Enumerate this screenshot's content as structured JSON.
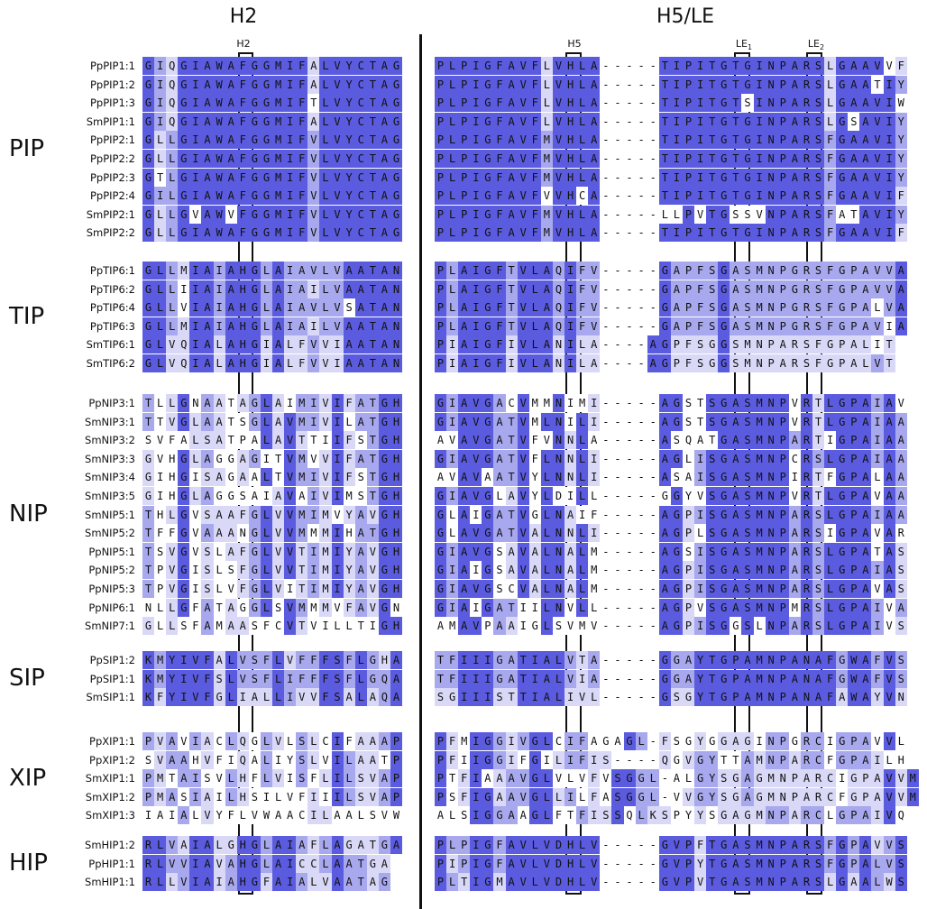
{
  "titles": {
    "left": "H2",
    "right": "H5/LE"
  },
  "column_labels": {
    "h2": "H2",
    "h5": "H5",
    "le1": "LE",
    "le1_sub": "1",
    "le2": "LE",
    "le2_sub": "2"
  },
  "colors": {
    "white": "#ffffff",
    "light": "#d9d9f7",
    "medium": "#a8a8ee",
    "dark": "#5b5be0"
  },
  "groups": [
    {
      "family": "PIP",
      "rows": [
        {
          "name": "PpPIP1:1",
          "h2": "GIQGIAWAFGGMIFALVYCTAG",
          "h5": "PLPIGFAVFLVHLA-----TIPITGTGINPARSLGAAVVF"
        },
        {
          "name": "PpPIP1:2",
          "h2": "GIQGIAWAFGGMIFALVYCTAG",
          "h5": "PLPIGFAVFLVHLA-----TIPITGTGINPARSLGAATIY"
        },
        {
          "name": "PpPIP1:3",
          "h2": "GIQGIAWAFGGMIFTLVYCTAG",
          "h5": "PLPIGFAVFLVHLA-----TIPITGTSINPARSLGAAVIW"
        },
        {
          "name": "SmPIP1:1",
          "h2": "GIQGIAWAFGGMIFALVYCTAG",
          "h5": "PLPIGFAVFLVHLA-----TIPITGTGINPARSLGSAVIY"
        },
        {
          "name": "PpPIP2:1",
          "h2": "GLLGIAWAFGGMIFVLVYCTAG",
          "h5": "PLPIGFAVFMVHLA-----TIPITGTGINPARSFGAAVIY"
        },
        {
          "name": "PpPIP2:2",
          "h2": "GLLGIAWAFGGMIFVLVYCTAG",
          "h5": "PLPIGFAVFMVHLA-----TIPITGTGINPARSFGAAVIY"
        },
        {
          "name": "PpPIP2:3",
          "h2": "GTLGIAWAFGGMIFVLVYCTAG",
          "h5": "PLPIGFAVFMVHLA-----TIPITGTGINPARSFGAAVIY"
        },
        {
          "name": "PpPIP2:4",
          "h2": "GILGIAWAFGGMIFVLVYCTAG",
          "h5": "PLPIGFAVFVVHCA-----TIPITGTGINPARSFGAAVIF"
        },
        {
          "name": "SmPIP2:1",
          "h2": "GLLGVAWVFGGMIFVLVYCTAG",
          "h5": "PLPIGFAVFMVHLA-----LLPVTGSSVNPARSFATAVIY"
        },
        {
          "name": "SmPIP2:2",
          "h2": "GLLGIAWAFGGMIFVLVYCTAG",
          "h5": "PLPIGFAVFMVHLA-----TIPITGTGINPARSFGAAVIF"
        }
      ]
    },
    {
      "family": "TIP",
      "rows": [
        {
          "name": "PpTIP6:1",
          "h2": "GLLMIAIAHGLAIAVLVAATAN",
          "h5": "PLAIGFTVLAQIFV-----GAPFSGASMNPGRSFGPAVVA"
        },
        {
          "name": "PpTIP6:2",
          "h2": "GLLIIAIAHGLAIAILVAATAN",
          "h5": "PLAIGFTVLAQIFV-----GAPFSGASMNPGRSFGPAVVA"
        },
        {
          "name": "PpTIP6:4",
          "h2": "GLLVIAIAHGLAIAVLVSATAN",
          "h5": "PLAIGFTVLAQIFV-----GAPFSGASMNPGRSFGPALVA"
        },
        {
          "name": "PpTIP6:3",
          "h2": "GLLMIAIAHGLAIAILVAATAN",
          "h5": "PLAIGFTVLAQIFV-----GAPFSGASMNPGRSFGPAVIA"
        },
        {
          "name": "SmTIP6:1",
          "h2": "GLVQIALAHGIALFVVIAATAN",
          "h5": "PIAIGFIVLANILA----AGPFSGGSMNPARSFGPALIT"
        },
        {
          "name": "SmTIP6:2",
          "h2": "GLVQIALAHGIALFVVIAATAN",
          "h5": "PIAIGFIVLANILA----AGPFSGGSMNPARSFGPALVT"
        }
      ]
    },
    {
      "family": "NIP",
      "rows": [
        {
          "name": "PpNIP3:1",
          "h2": "TLLGNAATAGLAIMIVIFATGH",
          "h5": "GIAVGACVMMNIMI-----AGSTSGASMNPVRTLGPAIAV"
        },
        {
          "name": "SmNIP3:1",
          "h2": "TTVGLAATSGLAVMIVILATGH",
          "h5": "GIAVGATVMLNILI-----AGSTSGASMNPVRTLGPAIAA"
        },
        {
          "name": "SmNIP3:2",
          "h2": "SVFALSATPALAVTTIIFSTGH",
          "h5": "AVAVGATVFVNNLA-----ASQATGASMNPARTIGPAIAA"
        },
        {
          "name": "SmNIP3:3",
          "h2": "GVHGLAGGAGITVMVVIFATGH",
          "h5": "GIAVGATVFLNNLI-----AGLISGASMNPCRSLGPAIAA"
        },
        {
          "name": "SmNIP3:4",
          "h2": "GIHGISAGAALTVMIVIFSTGH",
          "h5": "AVAVAATVYLNNLI-----ASAISGASMNPIRTFGPALAA"
        },
        {
          "name": "SmNIP3:5",
          "h2": "GIHGLAGGSAIAVAIVIMSTGH",
          "h5": "GIAVGLAVYLDILL-----GGYVSGASMNPVRTLGPAVAA"
        },
        {
          "name": "SmNIP5:1",
          "h2": "THLGVSAAFGLVVMIMVYAVGH",
          "h5": "GLAIGATVGLNAIF-----AGPISGASMNPARSLGPAIAA"
        },
        {
          "name": "SmNIP5:2",
          "h2": "TFFGVAAANGLVVMMMIHATGH",
          "h5": "GLAVGATVALNNLI-----AGPLSGASMNPARSIGPAVAR"
        },
        {
          "name": "PpNIP5:1",
          "h2": "TSVGVSLAFGLVVTIMIYAVGH",
          "h5": "GIAVGSAVALNALM-----AGSISGASMNPARSLGPATAS"
        },
        {
          "name": "PpNIP5:2",
          "h2": "TPVGISLSFGLVVTIMIYAVGH",
          "h5": "GIAIGSAVALNALM-----AGPISGASMNPARSLGPAIAS"
        },
        {
          "name": "PpNIP5:3",
          "h2": "TPVGISLVFGLVITIMIYAVGH",
          "h5": "GIAVGSCVALNALM-----AGPISGASMNPARSLGPAVAS"
        },
        {
          "name": "PpNIP6:1",
          "h2": "NLLGFATAGGLSVMMMVFAVGN",
          "h5": "GIAIGATIILNVLL-----AGPVSGASMNPMRSLGPAIVA"
        },
        {
          "name": "SmNIP7:1",
          "h2": "GLLSFAMAASFCVTVILLTIGH",
          "h5": "AMAVPAAIGLSVMV-----AGPISGGSLNPARSLGPAIVS"
        }
      ]
    },
    {
      "family": "SIP",
      "rows": [
        {
          "name": "PpSIP1:2",
          "h2": "KMYIVFALVSFLVFFFSFLGHA",
          "h5": "TFIIIGATIALVTA-----GGAYTGPAMNPANAFGWAFVS"
        },
        {
          "name": "PpSIP1:1",
          "h2": "KMYIVFSLVSFLIFFFSFLGQA",
          "h5": "TFIIIGATIALVIA-----GGAYTGPAMNPANAFGWAFVS"
        },
        {
          "name": "SmSIP1:1",
          "h2": "KFYIVFGLIALLIVVFSALAQA",
          "h5": "SGIIISTTIALIVL-----GSGYTGPAMNPANAFAWAYVN"
        }
      ]
    },
    {
      "family": "XIP",
      "rows": [
        {
          "name": "PpXIP1:1",
          "h2": "PVAVIACLQGLVLSLCIFAAAP",
          "h5": "PFMIGGIVGLCIFAGAGL-FSGYGGAGINPGRCIGPAVVL"
        },
        {
          "name": "PpXIP1:2",
          "h2": "SVAAHVFIQALIYSLVILAATP",
          "h5": "PFIIGGIFGILIFIS----QGVGYTTAMNPARCFGPAILH"
        },
        {
          "name": "SmXIP1:1",
          "h2": "PMTAISVLHFLVISFLILSVAP",
          "h5": "PTFIAAAVGLVLVFVSGGL-ALGYSGAGMNPARCIGPAVVM"
        },
        {
          "name": "SmXIP1:2",
          "h2": "PMASIAILHSILVFIIILSVAP",
          "h5": "PSFIGAAVGLLILFASGGL-VVGYSGAGMNPARCFGPAVVM"
        },
        {
          "name": "SmXIP1:3",
          "h2": "IAIALVYFLVWAACILAALSVW",
          "h5": "ALSIGGAAGLFTFISSQLKSPYYSGAGMNPARCLGPAIVQ"
        }
      ]
    },
    {
      "family": "HIP",
      "rows": [
        {
          "name": "SmHIP1:2",
          "h2": "RLVAIALGHGLAIAFLAGATGA",
          "h5": "PLPIGFAVLVDHLV-----GVPFTGASMNPARSFGPAVVS"
        },
        {
          "name": "PpHIP1:1",
          "h2": "RLVVIAVAHGLAICCLAATGA",
          "h5": "PIPIGFAVLVDHLV-----GVPYTGASMNPARSFGPALVS"
        },
        {
          "name": "SmHIP1:1",
          "h2": "RLLVIAIAHGFAIALVAATAG",
          "h5": "PLTIGMAVLVDHLV-----GVPVTGASMNPARSLGAALWS"
        }
      ]
    }
  ]
}
